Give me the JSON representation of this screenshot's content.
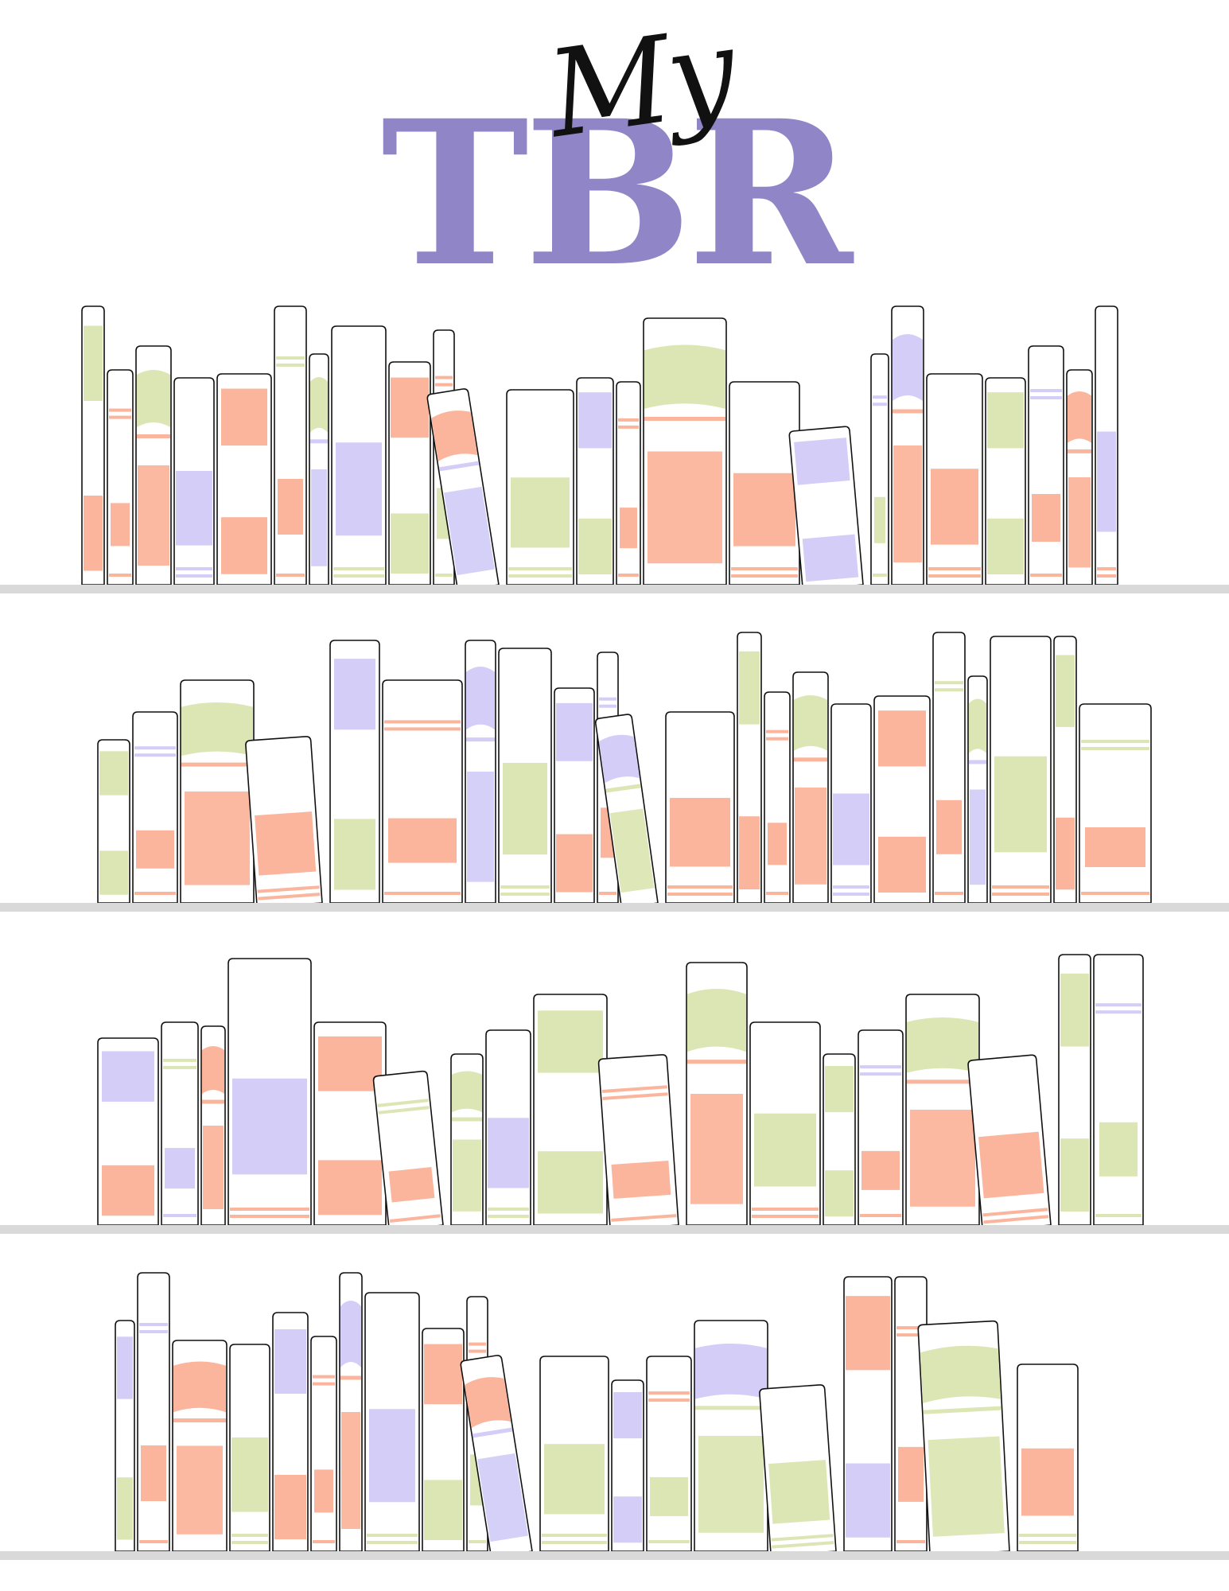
{
  "title": {
    "script_word": "My",
    "main_word": "TBR",
    "main_color": "#9085c7",
    "script_color": "#111111"
  },
  "palette": {
    "green": "#dbe6b4",
    "salmon": "#fbb59c",
    "lavender": "#d3cdf7",
    "shelf": "#d9d9d9",
    "outline": "#111111"
  },
  "shelves": [
    {
      "name": "shelf-1",
      "books": [
        {
          "w": 28,
          "h": 350,
          "c": [
            "green",
            "salmon"
          ]
        },
        {
          "w": 32,
          "h": 270,
          "c": [
            "salmon",
            "salmon"
          ]
        },
        {
          "w": 44,
          "h": 300,
          "c": [
            "green",
            "salmon"
          ]
        },
        {
          "w": 50,
          "h": 260,
          "c": [
            "lavender",
            "lavender"
          ]
        },
        {
          "w": 68,
          "h": 265,
          "c": [
            "salmon",
            "salmon"
          ]
        },
        {
          "w": 40,
          "h": 350,
          "c": [
            "green",
            "salmon"
          ]
        },
        {
          "w": 24,
          "h": 290,
          "c": [
            "green",
            "lavender"
          ]
        },
        {
          "w": 68,
          "h": 325,
          "c": [
            "lavender",
            "green"
          ]
        },
        {
          "w": 52,
          "h": 280,
          "c": [
            "salmon",
            "green"
          ]
        },
        {
          "w": 26,
          "h": 320,
          "c": [
            "salmon",
            "green"
          ]
        },
        {
          "w": 52,
          "h": 250,
          "c": [
            "salmon",
            "lavender"
          ],
          "tilt": -9
        },
        {
          "w": 84,
          "h": 245,
          "c": [
            "green",
            "green"
          ]
        },
        {
          "w": 46,
          "h": 260,
          "c": [
            "lavender",
            "green"
          ]
        },
        {
          "w": 30,
          "h": 255,
          "c": [
            "salmon",
            "salmon"
          ]
        },
        {
          "w": 104,
          "h": 335,
          "c": [
            "green",
            "salmon"
          ]
        },
        {
          "w": 88,
          "h": 255,
          "c": [
            "salmon",
            "salmon"
          ]
        },
        {
          "w": 76,
          "h": 200,
          "c": [
            "lavender",
            "lavender"
          ],
          "tilt": -5
        },
        {
          "w": 22,
          "h": 290,
          "c": [
            "lavender",
            "green"
          ]
        },
        {
          "w": 40,
          "h": 350,
          "c": [
            "lavender",
            "salmon"
          ]
        },
        {
          "w": 70,
          "h": 265,
          "c": [
            "salmon",
            "salmon"
          ]
        },
        {
          "w": 50,
          "h": 260,
          "c": [
            "green",
            "green"
          ]
        },
        {
          "w": 44,
          "h": 300,
          "c": [
            "lavender",
            "salmon"
          ]
        },
        {
          "w": 32,
          "h": 270,
          "c": [
            "salmon",
            "salmon"
          ]
        },
        {
          "w": 28,
          "h": 350,
          "c": [
            "lavender",
            "salmon"
          ]
        }
      ]
    },
    {
      "name": "shelf-2",
      "books": [
        {
          "w": 40,
          "h": 205,
          "c": [
            "green",
            "green"
          ]
        },
        {
          "w": 56,
          "h": 240,
          "c": [
            "lavender",
            "salmon"
          ]
        },
        {
          "w": 92,
          "h": 280,
          "c": [
            "green",
            "salmon"
          ]
        },
        {
          "w": 82,
          "h": 210,
          "c": [
            "salmon",
            "salmon"
          ],
          "tilt": -4
        },
        {
          "w": 62,
          "h": 330,
          "c": [
            "lavender",
            "green"
          ]
        },
        {
          "w": 100,
          "h": 280,
          "c": [
            "salmon",
            "salmon"
          ]
        },
        {
          "w": 38,
          "h": 330,
          "c": [
            "lavender",
            "lavender"
          ]
        },
        {
          "w": 66,
          "h": 320,
          "c": [
            "green",
            "green"
          ]
        },
        {
          "w": 50,
          "h": 270,
          "c": [
            "lavender",
            "salmon"
          ]
        },
        {
          "w": 26,
          "h": 315,
          "c": [
            "lavender",
            "salmon"
          ]
        },
        {
          "w": 46,
          "h": 240,
          "c": [
            "lavender",
            "green"
          ],
          "tilt": -8
        },
        {
          "w": 86,
          "h": 240,
          "c": [
            "salmon",
            "salmon"
          ]
        },
        {
          "w": 30,
          "h": 340,
          "c": [
            "green",
            "salmon"
          ]
        },
        {
          "w": 32,
          "h": 265,
          "c": [
            "salmon",
            "salmon"
          ]
        },
        {
          "w": 44,
          "h": 290,
          "c": [
            "green",
            "salmon"
          ]
        },
        {
          "w": 50,
          "h": 250,
          "c": [
            "lavender",
            "lavender"
          ]
        },
        {
          "w": 70,
          "h": 260,
          "c": [
            "salmon",
            "salmon"
          ]
        },
        {
          "w": 40,
          "h": 340,
          "c": [
            "green",
            "salmon"
          ]
        },
        {
          "w": 24,
          "h": 285,
          "c": [
            "green",
            "lavender"
          ]
        },
        {
          "w": 76,
          "h": 335,
          "c": [
            "green",
            "salmon"
          ]
        },
        {
          "w": 28,
          "h": 335,
          "c": [
            "green",
            "salmon"
          ]
        },
        {
          "w": 90,
          "h": 250,
          "c": [
            "green",
            "salmon"
          ]
        }
      ]
    },
    {
      "name": "shelf-3",
      "books": [
        {
          "w": 76,
          "h": 235,
          "c": [
            "lavender",
            "salmon"
          ]
        },
        {
          "w": 46,
          "h": 255,
          "c": [
            "green",
            "lavender"
          ]
        },
        {
          "w": 30,
          "h": 250,
          "c": [
            "salmon",
            "salmon"
          ]
        },
        {
          "w": 104,
          "h": 335,
          "c": [
            "lavender",
            "salmon"
          ]
        },
        {
          "w": 90,
          "h": 255,
          "c": [
            "salmon",
            "salmon"
          ]
        },
        {
          "w": 68,
          "h": 195,
          "c": [
            "green",
            "salmon"
          ],
          "tilt": -6
        },
        {
          "w": 40,
          "h": 215,
          "c": [
            "green",
            "green"
          ]
        },
        {
          "w": 56,
          "h": 245,
          "c": [
            "lavender",
            "green"
          ]
        },
        {
          "w": 92,
          "h": 290,
          "c": [
            "green",
            "green"
          ]
        },
        {
          "w": 86,
          "h": 215,
          "c": [
            "salmon",
            "salmon"
          ],
          "tilt": -4
        },
        {
          "w": 76,
          "h": 330,
          "c": [
            "green",
            "salmon"
          ]
        },
        {
          "w": 88,
          "h": 255,
          "c": [
            "green",
            "salmon"
          ]
        },
        {
          "w": 40,
          "h": 215,
          "c": [
            "green",
            "green"
          ]
        },
        {
          "w": 56,
          "h": 245,
          "c": [
            "lavender",
            "salmon"
          ]
        },
        {
          "w": 92,
          "h": 290,
          "c": [
            "green",
            "salmon"
          ]
        },
        {
          "w": 86,
          "h": 215,
          "c": [
            "salmon",
            "salmon"
          ],
          "tilt": -5
        },
        {
          "w": 40,
          "h": 340,
          "c": [
            "green",
            "green"
          ]
        },
        {
          "w": 62,
          "h": 340,
          "c": [
            "lavender",
            "green"
          ]
        }
      ]
    },
    {
      "name": "shelf-4",
      "books": [
        {
          "w": 24,
          "h": 290,
          "c": [
            "lavender",
            "green"
          ]
        },
        {
          "w": 40,
          "h": 350,
          "c": [
            "lavender",
            "salmon"
          ]
        },
        {
          "w": 68,
          "h": 265,
          "c": [
            "salmon",
            "salmon"
          ]
        },
        {
          "w": 50,
          "h": 260,
          "c": [
            "green",
            "green"
          ]
        },
        {
          "w": 44,
          "h": 300,
          "c": [
            "lavender",
            "salmon"
          ]
        },
        {
          "w": 32,
          "h": 270,
          "c": [
            "salmon",
            "salmon"
          ]
        },
        {
          "w": 28,
          "h": 350,
          "c": [
            "lavender",
            "salmon"
          ]
        },
        {
          "w": 68,
          "h": 325,
          "c": [
            "lavender",
            "green"
          ]
        },
        {
          "w": 52,
          "h": 280,
          "c": [
            "salmon",
            "green"
          ]
        },
        {
          "w": 26,
          "h": 320,
          "c": [
            "salmon",
            "green"
          ]
        },
        {
          "w": 52,
          "h": 250,
          "c": [
            "salmon",
            "lavender"
          ],
          "tilt": -9
        },
        {
          "w": 86,
          "h": 245,
          "c": [
            "green",
            "green"
          ]
        },
        {
          "w": 40,
          "h": 215,
          "c": [
            "lavender",
            "lavender"
          ]
        },
        {
          "w": 56,
          "h": 245,
          "c": [
            "salmon",
            "green"
          ]
        },
        {
          "w": 92,
          "h": 290,
          "c": [
            "lavender",
            "green"
          ]
        },
        {
          "w": 82,
          "h": 210,
          "c": [
            "green",
            "green"
          ],
          "tilt": -4
        },
        {
          "w": 60,
          "h": 345,
          "c": [
            "salmon",
            "lavender"
          ]
        },
        {
          "w": 40,
          "h": 345,
          "c": [
            "salmon",
            "salmon"
          ]
        },
        {
          "w": 100,
          "h": 290,
          "c": [
            "green",
            "green"
          ],
          "tilt": -3
        },
        {
          "w": 76,
          "h": 235,
          "c": [
            "salmon",
            "green"
          ]
        }
      ]
    }
  ]
}
